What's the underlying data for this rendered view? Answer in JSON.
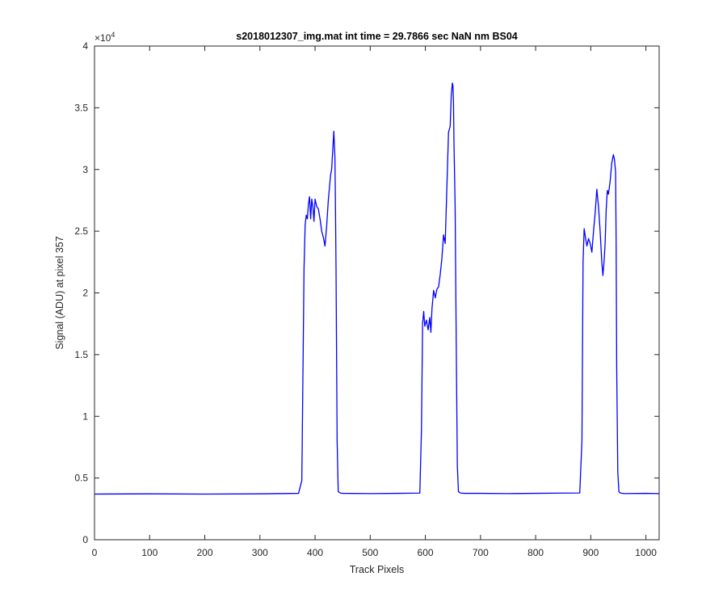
{
  "chart_data": {
    "type": "line",
    "title": "s2018012307_img.mat int time = 29.7866 sec  NaN nm BS04",
    "xlabel": "Track Pixels",
    "ylabel": "Signal (ADU) at pixel 357",
    "xlim": [
      0,
      1024
    ],
    "ylim": [
      0,
      40000
    ],
    "y_exponent_label": "×10",
    "y_exponent_power": "4",
    "x_ticks": [
      0,
      100,
      200,
      300,
      400,
      500,
      600,
      700,
      800,
      900,
      1000
    ],
    "x_tick_labels": [
      "0",
      "100",
      "200",
      "300",
      "400",
      "500",
      "600",
      "700",
      "800",
      "900",
      "1000"
    ],
    "y_ticks": [
      0,
      5000,
      10000,
      15000,
      20000,
      25000,
      30000,
      35000,
      40000
    ],
    "y_tick_labels": [
      "0",
      "0.5",
      "1",
      "1.5",
      "2",
      "2.5",
      "3",
      "3.5",
      "4"
    ],
    "grid": false,
    "series": [
      {
        "color": "#0000ff",
        "x": [
          0,
          100,
          200,
          300,
          370,
          376,
          380,
          382,
          384,
          386,
          388,
          390,
          392,
          394,
          396,
          398,
          400,
          403,
          406,
          409,
          412,
          415,
          418,
          421,
          424,
          426,
          428,
          430,
          432,
          434,
          436,
          437,
          438,
          440,
          442,
          446,
          450,
          500,
          550,
          590,
          593,
          595,
          597,
          599,
          602,
          605,
          608,
          610,
          612,
          615,
          618,
          621,
          624,
          627,
          630,
          633,
          636,
          639,
          642,
          645,
          647,
          649,
          650,
          651,
          652,
          654,
          656,
          658,
          660,
          664,
          670,
          700,
          750,
          800,
          850,
          880,
          884,
          886,
          888,
          890,
          893,
          896,
          899,
          902,
          905,
          908,
          911,
          914,
          917,
          920,
          922,
          924,
          926,
          928,
          930,
          932,
          935,
          938,
          941,
          943,
          945,
          946,
          947,
          949,
          951,
          953,
          955,
          960,
          1000,
          1024
        ],
        "y": [
          3700,
          3720,
          3700,
          3720,
          3760,
          4800,
          22000,
          25500,
          26300,
          26000,
          27200,
          27800,
          26000,
          27600,
          27000,
          25800,
          27600,
          27000,
          26800,
          26000,
          25000,
          24500,
          23800,
          25400,
          27500,
          28500,
          29500,
          30000,
          31500,
          33100,
          31000,
          27000,
          22000,
          8000,
          3900,
          3780,
          3760,
          3740,
          3760,
          3780,
          9000,
          17500,
          18500,
          17300,
          17800,
          17000,
          18000,
          16800,
          18700,
          20200,
          19600,
          20300,
          20500,
          21500,
          22800,
          24700,
          24000,
          28500,
          33000,
          33500,
          36000,
          37000,
          36800,
          35500,
          32000,
          27000,
          16000,
          6000,
          3900,
          3780,
          3760,
          3760,
          3740,
          3760,
          3780,
          3790,
          8000,
          22500,
          25200,
          24600,
          23800,
          24400,
          24000,
          23300,
          25000,
          26500,
          28400,
          27000,
          25000,
          22500,
          21400,
          22500,
          24000,
          26800,
          28300,
          28000,
          29000,
          30500,
          31200,
          30800,
          29800,
          24000,
          14000,
          5500,
          3900,
          3800,
          3780,
          3740,
          3760,
          3740
        ]
      }
    ]
  }
}
